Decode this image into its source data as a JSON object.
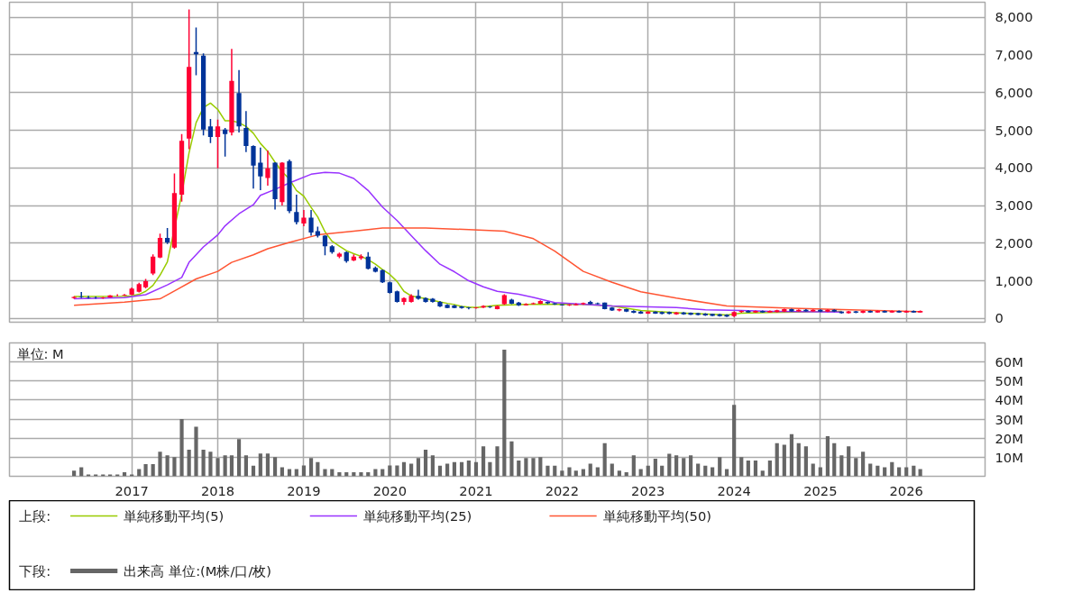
{
  "chart_data": [
    {
      "type": "candlestick",
      "legend": "bottom",
      "legend_title": "上段:",
      "tick_labels": "y",
      "grid": true,
      "xlim": [
        "2015-08",
        "2026-12"
      ],
      "xticks": [
        "2017",
        "2018",
        "2019",
        "2020",
        "2021",
        "2022",
        "2023",
        "2024",
        "2025",
        "2026"
      ],
      "ylim": [
        -100,
        8400
      ],
      "yticks": [
        0,
        {
          "value": 1000,
          "label": "1,000"
        },
        {
          "value": 2000,
          "label": "2,000"
        },
        {
          "value": 3000,
          "label": "3,000"
        },
        {
          "value": 4000,
          "label": "4,000"
        },
        {
          "value": 5000,
          "label": "5,000"
        },
        {
          "value": 6000,
          "label": "6,000"
        },
        {
          "value": 7000,
          "label": "7,000"
        },
        {
          "value": 8000,
          "label": "8,000"
        }
      ],
      "x": [
        "2016-05",
        "2016-06",
        "2016-07",
        "2016-08",
        "2016-09",
        "2016-10",
        "2016-11",
        "2016-12",
        "2017-01",
        "2017-02",
        "2017-03",
        "2017-04",
        "2017-05",
        "2017-06",
        "2017-07",
        "2017-08",
        "2017-09",
        "2017-10",
        "2017-11",
        "2017-12",
        "2018-01",
        "2018-02",
        "2018-03",
        "2018-04",
        "2018-05",
        "2018-06",
        "2018-07",
        "2018-08",
        "2018-09",
        "2018-10",
        "2018-11",
        "2018-12",
        "2019-01",
        "2019-02",
        "2019-03",
        "2019-04",
        "2019-05",
        "2019-06",
        "2019-07",
        "2019-08",
        "2019-09",
        "2019-10",
        "2019-11",
        "2019-12",
        "2020-01",
        "2020-02",
        "2020-03",
        "2020-04",
        "2020-05",
        "2020-06",
        "2020-07",
        "2020-08",
        "2020-09",
        "2020-10",
        "2020-11",
        "2020-12",
        "2021-01",
        "2021-02",
        "2021-03",
        "2021-04",
        "2021-05",
        "2021-06",
        "2021-07",
        "2021-08",
        "2021-09",
        "2021-10",
        "2021-11",
        "2021-12",
        "2022-01",
        "2022-02",
        "2022-03",
        "2022-04",
        "2022-05",
        "2022-06",
        "2022-07",
        "2022-08",
        "2022-09",
        "2022-10",
        "2022-11",
        "2022-12",
        "2023-01",
        "2023-02",
        "2023-03",
        "2023-04",
        "2023-05",
        "2023-06",
        "2023-07",
        "2023-08",
        "2023-09",
        "2023-10",
        "2023-11",
        "2023-12",
        "2024-01",
        "2024-02",
        "2024-03",
        "2024-04",
        "2024-05",
        "2024-06",
        "2024-07",
        "2024-08",
        "2024-09",
        "2024-10",
        "2024-11",
        "2024-12",
        "2025-01",
        "2025-02",
        "2025-03",
        "2025-04",
        "2025-05",
        "2025-06",
        "2025-07",
        "2025-08",
        "2025-09",
        "2025-10",
        "2025-11",
        "2025-12",
        "2026-01",
        "2026-02",
        "2026-03"
      ],
      "ohlc": [
        [
          540,
          590,
          520,
          570
        ],
        [
          570,
          700,
          540,
          560
        ],
        [
          560,
          600,
          530,
          545
        ],
        [
          545,
          580,
          520,
          540
        ],
        [
          540,
          570,
          520,
          560
        ],
        [
          560,
          620,
          550,
          610
        ],
        [
          610,
          640,
          590,
          615
        ],
        [
          615,
          650,
          600,
          630
        ],
        [
          630,
          820,
          620,
          790
        ],
        [
          710,
          950,
          690,
          910
        ],
        [
          830,
          1050,
          800,
          990
        ],
        [
          1190,
          1700,
          1150,
          1640
        ],
        [
          1620,
          2250,
          1600,
          2140
        ],
        [
          2140,
          2400,
          1980,
          2020
        ],
        [
          1880,
          3850,
          1850,
          3330
        ],
        [
          3290,
          4900,
          3100,
          4720
        ],
        [
          4780,
          8210,
          4500,
          6680
        ],
        [
          7080,
          7730,
          6460,
          7020
        ],
        [
          6980,
          7040,
          4860,
          5020
        ],
        [
          5100,
          5300,
          4660,
          4820
        ],
        [
          4820,
          5280,
          3990,
          5100
        ],
        [
          5020,
          5060,
          4300,
          4900
        ],
        [
          4940,
          7160,
          4860,
          6310
        ],
        [
          5990,
          6600,
          4940,
          5100
        ],
        [
          5060,
          5510,
          4420,
          4580
        ],
        [
          4580,
          4600,
          3450,
          4060
        ],
        [
          4140,
          4540,
          3410,
          3770
        ],
        [
          3730,
          4460,
          3530,
          3990
        ],
        [
          4140,
          4150,
          2890,
          3170
        ],
        [
          3090,
          4150,
          3000,
          4140
        ],
        [
          4180,
          4220,
          2800,
          2850
        ],
        [
          2830,
          3290,
          2500,
          2560
        ],
        [
          2520,
          2880,
          2450,
          2680
        ],
        [
          2680,
          2880,
          2200,
          2280
        ],
        [
          2320,
          2440,
          2150,
          2200
        ],
        [
          2200,
          2210,
          1680,
          1920
        ],
        [
          1920,
          1950,
          1720,
          1760
        ],
        [
          1640,
          1750,
          1600,
          1720
        ],
        [
          1760,
          1780,
          1480,
          1520
        ],
        [
          1540,
          1700,
          1520,
          1640
        ],
        [
          1600,
          1700,
          1560,
          1650
        ],
        [
          1640,
          1760,
          1300,
          1320
        ],
        [
          1340,
          1380,
          1220,
          1240
        ],
        [
          1280,
          1300,
          940,
          960
        ],
        [
          960,
          980,
          660,
          680
        ],
        [
          720,
          740,
          420,
          440
        ],
        [
          440,
          560,
          360,
          540
        ],
        [
          440,
          640,
          420,
          600
        ],
        [
          600,
          760,
          500,
          520
        ],
        [
          540,
          560,
          420,
          440
        ],
        [
          520,
          540,
          420,
          440
        ],
        [
          440,
          460,
          300,
          320
        ],
        [
          360,
          380,
          270,
          280
        ],
        [
          340,
          360,
          270,
          280
        ],
        [
          320,
          330,
          260,
          280
        ],
        [
          290,
          300,
          240,
          270
        ],
        [
          270,
          300,
          260,
          290
        ],
        [
          290,
          350,
          280,
          330
        ],
        [
          320,
          330,
          280,
          300
        ],
        [
          250,
          340,
          240,
          330
        ],
        [
          380,
          640,
          360,
          620
        ],
        [
          500,
          520,
          380,
          390
        ],
        [
          420,
          440,
          330,
          350
        ],
        [
          350,
          400,
          340,
          380
        ],
        [
          380,
          420,
          370,
          400
        ],
        [
          390,
          480,
          380,
          460
        ],
        [
          440,
          450,
          380,
          400
        ],
        [
          400,
          410,
          360,
          370
        ],
        [
          370,
          380,
          340,
          350
        ],
        [
          340,
          380,
          330,
          360
        ],
        [
          350,
          400,
          340,
          380
        ],
        [
          380,
          420,
          360,
          410
        ],
        [
          440,
          470,
          370,
          380
        ],
        [
          400,
          420,
          370,
          380
        ],
        [
          420,
          420,
          240,
          250
        ],
        [
          290,
          300,
          200,
          210
        ],
        [
          210,
          260,
          190,
          250
        ],
        [
          250,
          260,
          170,
          180
        ],
        [
          200,
          220,
          140,
          150
        ],
        [
          180,
          200,
          120,
          130
        ],
        [
          130,
          190,
          120,
          180
        ],
        [
          180,
          190,
          120,
          130
        ],
        [
          170,
          180,
          110,
          120
        ],
        [
          170,
          180,
          110,
          120
        ],
        [
          110,
          170,
          100,
          160
        ],
        [
          160,
          170,
          100,
          110
        ],
        [
          150,
          160,
          90,
          100
        ],
        [
          140,
          150,
          80,
          90
        ],
        [
          130,
          140,
          70,
          80
        ],
        [
          120,
          130,
          60,
          70
        ],
        [
          110,
          120,
          50,
          60
        ],
        [
          100,
          110,
          40,
          50
        ],
        [
          60,
          190,
          40,
          170
        ],
        [
          170,
          210,
          150,
          200
        ],
        [
          200,
          220,
          150,
          160
        ],
        [
          160,
          210,
          150,
          200
        ],
        [
          200,
          210,
          150,
          160
        ],
        [
          160,
          210,
          150,
          200
        ],
        [
          170,
          230,
          160,
          220
        ],
        [
          180,
          260,
          170,
          250
        ],
        [
          250,
          260,
          180,
          190
        ],
        [
          190,
          240,
          180,
          230
        ],
        [
          230,
          250,
          180,
          190
        ],
        [
          190,
          240,
          180,
          230
        ],
        [
          230,
          240,
          170,
          180
        ],
        [
          180,
          240,
          170,
          230
        ],
        [
          230,
          240,
          170,
          180
        ],
        [
          180,
          190,
          130,
          140
        ],
        [
          140,
          200,
          130,
          190
        ],
        [
          190,
          200,
          140,
          150
        ],
        [
          150,
          210,
          140,
          200
        ],
        [
          200,
          210,
          150,
          160
        ],
        [
          160,
          210,
          150,
          200
        ],
        [
          200,
          210,
          150,
          160
        ],
        [
          160,
          210,
          150,
          200
        ],
        [
          200,
          210,
          150,
          160
        ],
        [
          160,
          210,
          150,
          200
        ],
        [
          200,
          210,
          150,
          160
        ],
        [
          160,
          210,
          150,
          200
        ]
      ],
      "series": [
        {
          "type": "line",
          "name": "単純移動平均(5)",
          "color": "#99cc00",
          "x": [
            "2016-05",
            "2016-12",
            "2017-01",
            "2017-02",
            "2017-03",
            "2017-04",
            "2017-05",
            "2017-06",
            "2017-08",
            "2017-09",
            "2017-10",
            "2017-11",
            "2017-12",
            "2018-01",
            "2018-02",
            "2018-03",
            "2018-04",
            "2018-05",
            "2018-06",
            "2018-07",
            "2018-08",
            "2018-09",
            "2018-10",
            "2018-11",
            "2018-12",
            "2019-01",
            "2019-02",
            "2019-03",
            "2019-04",
            "2019-05",
            "2019-06",
            "2019-07",
            "2019-08",
            "2019-09",
            "2019-10",
            "2019-11",
            "2019-12",
            "2020-01",
            "2020-02",
            "2020-03",
            "2020-04",
            "2020-05",
            "2020-06",
            "2020-07",
            "2020-08",
            "2020-09",
            "2020-10",
            "2020-11",
            "2020-12",
            "2021-01",
            "2021-04",
            "2021-08",
            "2021-12",
            "2022-04",
            "2022-08",
            "2022-12",
            "2023-05",
            "2023-12",
            "2024-02",
            "2024-06",
            "2025-04"
          ],
          "values": [
            580,
            590,
            600,
            640,
            720,
            880,
            1150,
            1500,
            3300,
            4400,
            5200,
            5600,
            5720,
            5550,
            5250,
            5250,
            5200,
            5100,
            4920,
            4650,
            4440,
            4150,
            3900,
            3700,
            3400,
            3250,
            2950,
            2700,
            2300,
            2050,
            1920,
            1800,
            1720,
            1650,
            1560,
            1440,
            1300,
            1170,
            980,
            720,
            600,
            560,
            530,
            480,
            440,
            400,
            370,
            320,
            300,
            290,
            350,
            370,
            380,
            370,
            330,
            210,
            150,
            90,
            140,
            160,
            190
          ]
        },
        {
          "type": "line",
          "name": "単純移動平均(25)",
          "color": "#9933ff",
          "x": [
            "2016-05",
            "2016-12",
            "2017-03",
            "2017-06",
            "2017-08",
            "2017-09",
            "2017-11",
            "2018-01",
            "2018-02",
            "2018-04",
            "2018-06",
            "2018-07",
            "2018-09",
            "2018-11",
            "2019-02",
            "2019-04",
            "2019-06",
            "2019-08",
            "2019-10",
            "2019-12",
            "2020-02",
            "2020-04",
            "2020-06",
            "2020-08",
            "2020-10",
            "2020-12",
            "2021-02",
            "2021-04",
            "2021-07",
            "2021-09",
            "2021-12",
            "2022-08",
            "2023-05",
            "2023-09",
            "2024-02",
            "2024-06",
            "2025-04"
          ],
          "values": [
            520,
            550,
            630,
            890,
            1090,
            1490,
            1900,
            2220,
            2460,
            2780,
            3020,
            3270,
            3430,
            3600,
            3830,
            3880,
            3860,
            3720,
            3400,
            2960,
            2600,
            2200,
            1800,
            1440,
            1240,
            1000,
            840,
            720,
            640,
            560,
            420,
            330,
            290,
            230,
            210,
            190,
            170
          ]
        },
        {
          "type": "line",
          "name": "単純移動平均(50)",
          "color": "#ff5533",
          "x": [
            "2016-05",
            "2016-12",
            "2017-05",
            "2017-07",
            "2017-10",
            "2018-01",
            "2018-03",
            "2018-06",
            "2018-08",
            "2018-11",
            "2019-03",
            "2019-08",
            "2019-12",
            "2020-06",
            "2020-12",
            "2021-05",
            "2021-09",
            "2021-12",
            "2022-04",
            "2022-08",
            "2022-12",
            "2023-05",
            "2023-12",
            "2024-09",
            "2026-03"
          ],
          "values": [
            350,
            430,
            520,
            730,
            1050,
            1250,
            1490,
            1690,
            1850,
            2020,
            2220,
            2320,
            2400,
            2400,
            2360,
            2320,
            2120,
            1790,
            1250,
            960,
            710,
            540,
            330,
            270,
            180
          ]
        }
      ]
    },
    {
      "type": "bar",
      "legend": "bottom",
      "legend_title": "下段:",
      "grid": true,
      "annotations": [
        "単位: M"
      ],
      "xlim": [
        "2015-08",
        "2026-12"
      ],
      "xticks": [
        "2017",
        "2018",
        "2019",
        "2020",
        "2021",
        "2022",
        "2023",
        "2024",
        "2025",
        "2026"
      ],
      "ylim": [
        0,
        70
      ],
      "yticks": [
        {
          "value": 10,
          "label": "10M"
        },
        {
          "value": 20,
          "label": "20M"
        },
        {
          "value": 30,
          "label": "30M"
        },
        {
          "value": 40,
          "label": "40M"
        },
        {
          "value": 50,
          "label": "50M"
        },
        {
          "value": 60,
          "label": "60M"
        }
      ],
      "x": [
        "2016-05",
        "2016-06",
        "2016-07",
        "2016-08",
        "2016-09",
        "2016-10",
        "2016-11",
        "2016-12",
        "2017-01",
        "2017-02",
        "2017-03",
        "2017-04",
        "2017-05",
        "2017-06",
        "2017-07",
        "2017-08",
        "2017-09",
        "2017-10",
        "2017-11",
        "2017-12",
        "2018-01",
        "2018-02",
        "2018-03",
        "2018-04",
        "2018-05",
        "2018-06",
        "2018-07",
        "2018-08",
        "2018-09",
        "2018-10",
        "2018-11",
        "2018-12",
        "2019-01",
        "2019-02",
        "2019-03",
        "2019-04",
        "2019-05",
        "2019-06",
        "2019-07",
        "2019-08",
        "2019-09",
        "2019-10",
        "2019-11",
        "2019-12",
        "2020-01",
        "2020-02",
        "2020-03",
        "2020-04",
        "2020-05",
        "2020-06",
        "2020-07",
        "2020-08",
        "2020-09",
        "2020-10",
        "2020-11",
        "2020-12",
        "2021-01",
        "2021-02",
        "2021-03",
        "2021-04",
        "2021-05",
        "2021-06",
        "2021-07",
        "2021-08",
        "2021-09",
        "2021-10",
        "2021-11",
        "2021-12",
        "2022-01",
        "2022-02",
        "2022-03",
        "2022-04",
        "2022-05",
        "2022-06",
        "2022-07",
        "2022-08",
        "2022-09",
        "2022-10",
        "2022-11",
        "2022-12",
        "2023-01",
        "2023-02",
        "2023-03",
        "2023-04",
        "2023-05",
        "2023-06",
        "2023-07",
        "2023-08",
        "2023-09",
        "2023-10",
        "2023-11",
        "2023-12",
        "2024-01",
        "2024-02",
        "2024-03",
        "2024-04",
        "2024-05",
        "2024-06",
        "2024-07",
        "2024-08",
        "2024-09",
        "2024-10",
        "2024-11",
        "2024-12",
        "2025-01",
        "2025-02",
        "2025-03",
        "2025-04",
        "2025-05",
        "2025-06",
        "2025-07",
        "2025-08",
        "2025-09",
        "2025-10",
        "2025-11",
        "2025-12",
        "2026-01",
        "2026-02",
        "2026-03"
      ],
      "series": [
        {
          "name": "出来高 単位:(M株/口/枚)",
          "color": "#666666",
          "values": [
            3.0,
            4.7,
            1.0,
            1.0,
            1.0,
            1.0,
            1.0,
            2.1,
            1.0,
            3.8,
            6.4,
            6.4,
            12.9,
            11.0,
            10.1,
            30.0,
            13.9,
            26.0,
            13.9,
            12.9,
            9.6,
            11.0,
            11.0,
            19.5,
            11.0,
            5.6,
            12.0,
            12.0,
            10.1,
            4.7,
            3.8,
            3.8,
            5.7,
            9.6,
            7.5,
            3.8,
            3.8,
            2.1,
            2.1,
            2.1,
            2.1,
            2.1,
            3.8,
            3.8,
            5.7,
            5.7,
            7.5,
            6.6,
            9.6,
            13.9,
            11.0,
            5.6,
            6.6,
            7.5,
            7.5,
            8.3,
            7.5,
            15.7,
            7.5,
            15.7,
            66.5,
            18.3,
            8.3,
            9.6,
            9.6,
            10.1,
            5.6,
            5.6,
            3.0,
            4.7,
            3.0,
            3.8,
            6.6,
            4.7,
            17.4,
            6.6,
            3.0,
            2.1,
            11.0,
            3.8,
            5.6,
            9.2,
            5.6,
            11.8,
            11.0,
            9.6,
            11.0,
            6.6,
            5.6,
            4.7,
            10.1,
            3.8,
            37.5,
            10.1,
            8.3,
            8.3,
            3.0,
            8.3,
            17.4,
            16.5,
            22.1,
            17.4,
            15.7,
            6.6,
            4.7,
            21.0,
            17.4,
            11.0,
            15.7,
            9.6,
            12.9,
            6.6,
            5.6,
            4.7,
            7.5,
            4.7,
            4.7,
            5.6,
            3.8
          ]
        }
      ]
    }
  ]
}
